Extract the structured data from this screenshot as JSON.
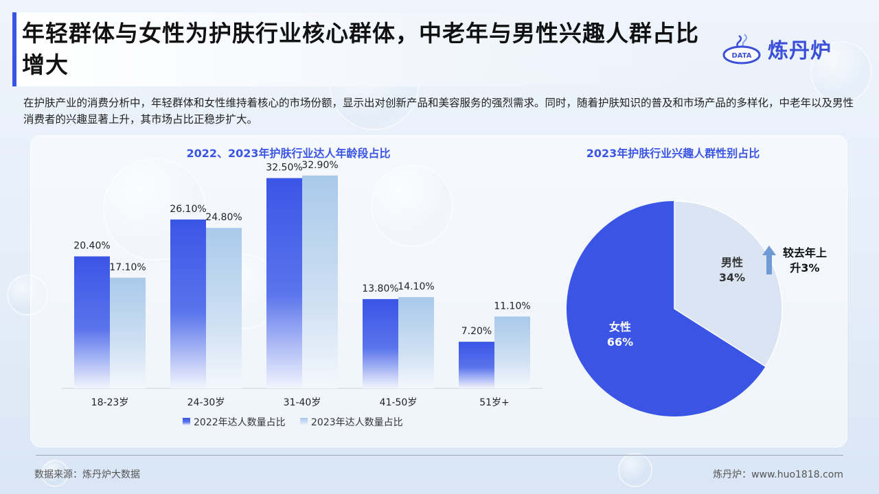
{
  "header": {
    "title": "年轻群体与女性为护肤行业核心群体，中老年与男性兴趣人群占比增大",
    "logo_text": "炼丹炉",
    "logo_badge": "DATA"
  },
  "description": "在护肤产业的消费分析中，年轻群体和女性维持着核心的市场份额，显示出对创新产品和美容服务的强烈需求。同时，随着护肤知识的普及和市场产品的多样化，中老年以及男性消费者的兴趣显著上升，其市场占比正稳步扩大。",
  "colors": {
    "series_2022": "#3a55e6",
    "series_2023": "#a9c9ea",
    "female": "#3a55e6",
    "male": "#dbe4f2",
    "accent": "#3a55e6"
  },
  "chart_data": [
    {
      "type": "bar",
      "title": "2022、2023年护肤行业达人年龄段占比",
      "categories": [
        "18-23岁",
        "24-30岁",
        "31-40岁",
        "41-50岁",
        "51岁+"
      ],
      "series": [
        {
          "name": "2022年达人数量占比",
          "values": [
            20.4,
            26.1,
            32.5,
            13.8,
            7.2
          ],
          "labels": [
            "20.40%",
            "26.10%",
            "32.50%",
            "13.80%",
            "7.20%"
          ]
        },
        {
          "name": "2023年达人数量占比",
          "values": [
            17.1,
            24.8,
            32.9,
            14.1,
            11.1
          ],
          "labels": [
            "17.10%",
            "24.80%",
            "32.90%",
            "14.10%",
            "11.10%"
          ]
        }
      ],
      "ylim": [
        0,
        35
      ],
      "legend": "bottom"
    },
    {
      "type": "pie",
      "title": "2023年护肤行业兴趣人群性别占比",
      "slices": [
        {
          "name": "女性",
          "value": 66,
          "label": "66%"
        },
        {
          "name": "男性",
          "value": 34,
          "label": "34%"
        }
      ],
      "annotation": "较去年上升3%"
    }
  ],
  "footer": {
    "source": "数据来源：炼丹炉大数据",
    "site": "炼丹炉：www.huo1818.com"
  }
}
